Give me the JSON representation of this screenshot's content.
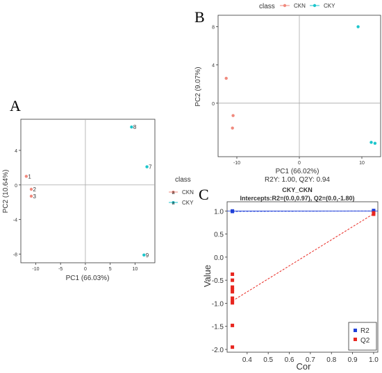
{
  "colors": {
    "CKN": "#F08A7E",
    "CKY": "#1CC6CC",
    "R2": "#1F3FD8",
    "Q2": "#E8261F",
    "axis": "#333333",
    "ref": "#A8A8A8"
  },
  "chart_data": [
    {
      "panel": "A",
      "type": "scatter",
      "xlabel": "PC1 (66.03%)",
      "ylabel": "PC2 (10.64%)",
      "xlim": [
        -13,
        14
      ],
      "ylim": [
        -9,
        7.6
      ],
      "xticks": [
        -10,
        -5,
        0,
        5,
        10
      ],
      "yticks": [
        -8,
        -4,
        0,
        4
      ],
      "grid": false,
      "reference_lines": {
        "x": 0,
        "y": 0
      },
      "legend": {
        "title": "class",
        "position": "right",
        "entries": [
          "CKN",
          "CKY"
        ]
      },
      "series": [
        {
          "name": "CKN",
          "points": [
            {
              "x": -11.9,
              "y": 1.0,
              "label": "1"
            },
            {
              "x": -10.9,
              "y": -0.5,
              "label": "2"
            },
            {
              "x": -10.9,
              "y": -1.3,
              "label": "3"
            }
          ]
        },
        {
          "name": "CKY",
          "points": [
            {
              "x": 9.3,
              "y": 6.7,
              "label": "8"
            },
            {
              "x": 12.4,
              "y": 2.1,
              "label": "7"
            },
            {
              "x": 11.8,
              "y": -8.1,
              "label": "9"
            }
          ]
        }
      ]
    },
    {
      "panel": "B",
      "type": "scatter",
      "xlabel": "PC1 (66.02%)",
      "ylabel": "PC2 (9.07%)",
      "subtitle": "R2Y: 1.00, Q2Y: 0.94",
      "xlim": [
        -13,
        13
      ],
      "ylim": [
        -5.6,
        9.2
      ],
      "xticks": [
        -10,
        0,
        10
      ],
      "yticks": [
        0,
        4,
        8
      ],
      "grid": false,
      "reference_lines": {
        "x": 0,
        "y": 0
      },
      "legend": {
        "title": "class",
        "position": "top",
        "entries": [
          "CKN",
          "CKY"
        ]
      },
      "series": [
        {
          "name": "CKN",
          "points": [
            {
              "x": -11.7,
              "y": 2.6
            },
            {
              "x": -10.6,
              "y": -1.3
            },
            {
              "x": -10.7,
              "y": -2.6
            }
          ]
        },
        {
          "name": "CKY",
          "points": [
            {
              "x": 9.4,
              "y": 8.0
            },
            {
              "x": 11.5,
              "y": -4.1
            },
            {
              "x": 12.1,
              "y": -4.2
            }
          ]
        }
      ]
    },
    {
      "panel": "C",
      "type": "scatter",
      "title": "CKY_CKN",
      "subtitle": "Intercepts:R2=(0.0,0.97), Q2=(0.0,-1.80)",
      "xlabel": "Cor",
      "ylabel": "Value",
      "xlim": [
        0.305,
        1.02
      ],
      "ylim": [
        -2.06,
        1.2
      ],
      "xticks": [
        0.4,
        0.5,
        0.6,
        0.7,
        0.8,
        0.9,
        1.0
      ],
      "xtick_labels": [
        "0.4",
        "0.5",
        "0.6",
        "0.7",
        "0.8",
        "0.9",
        "1.0"
      ],
      "yticks": [
        1.0,
        0.5,
        0.0,
        -0.5,
        -1.0,
        -1.5,
        -2.0
      ],
      "ytick_labels": [
        "1.0",
        "0.5",
        "0.0",
        "-0.5",
        "-1.0",
        "-1.5",
        "-2.0"
      ],
      "grid": false,
      "reference_lines": {
        "y": 1.0
      },
      "legend": {
        "position": "bottom-right",
        "entries": [
          "R2",
          "Q2"
        ]
      },
      "series": [
        {
          "name": "R2",
          "points": [
            {
              "x": 0.33,
              "y": 0.99
            },
            {
              "x": 0.33,
              "y": 1.0
            },
            {
              "x": 1.0,
              "y": 1.01
            },
            {
              "x": 1.0,
              "y": 0.99
            }
          ]
        },
        {
          "name": "Q2",
          "points": [
            {
              "x": 0.33,
              "y": -0.37
            },
            {
              "x": 0.33,
              "y": -0.5
            },
            {
              "x": 0.33,
              "y": -0.65
            },
            {
              "x": 0.33,
              "y": -0.7
            },
            {
              "x": 0.33,
              "y": -0.75
            },
            {
              "x": 0.33,
              "y": -0.89
            },
            {
              "x": 0.33,
              "y": -0.95
            },
            {
              "x": 0.33,
              "y": -0.99
            },
            {
              "x": 0.33,
              "y": -1.48
            },
            {
              "x": 0.33,
              "y": -1.95
            },
            {
              "x": 1.0,
              "y": 0.96
            },
            {
              "x": 1.0,
              "y": 0.93
            }
          ]
        }
      ],
      "regression_lines": [
        {
          "name": "R2",
          "from": [
            0.33,
            0.99
          ],
          "to": [
            1.0,
            1.0
          ]
        },
        {
          "name": "Q2",
          "from": [
            0.33,
            -0.95
          ],
          "to": [
            1.0,
            0.94
          ]
        }
      ]
    }
  ]
}
